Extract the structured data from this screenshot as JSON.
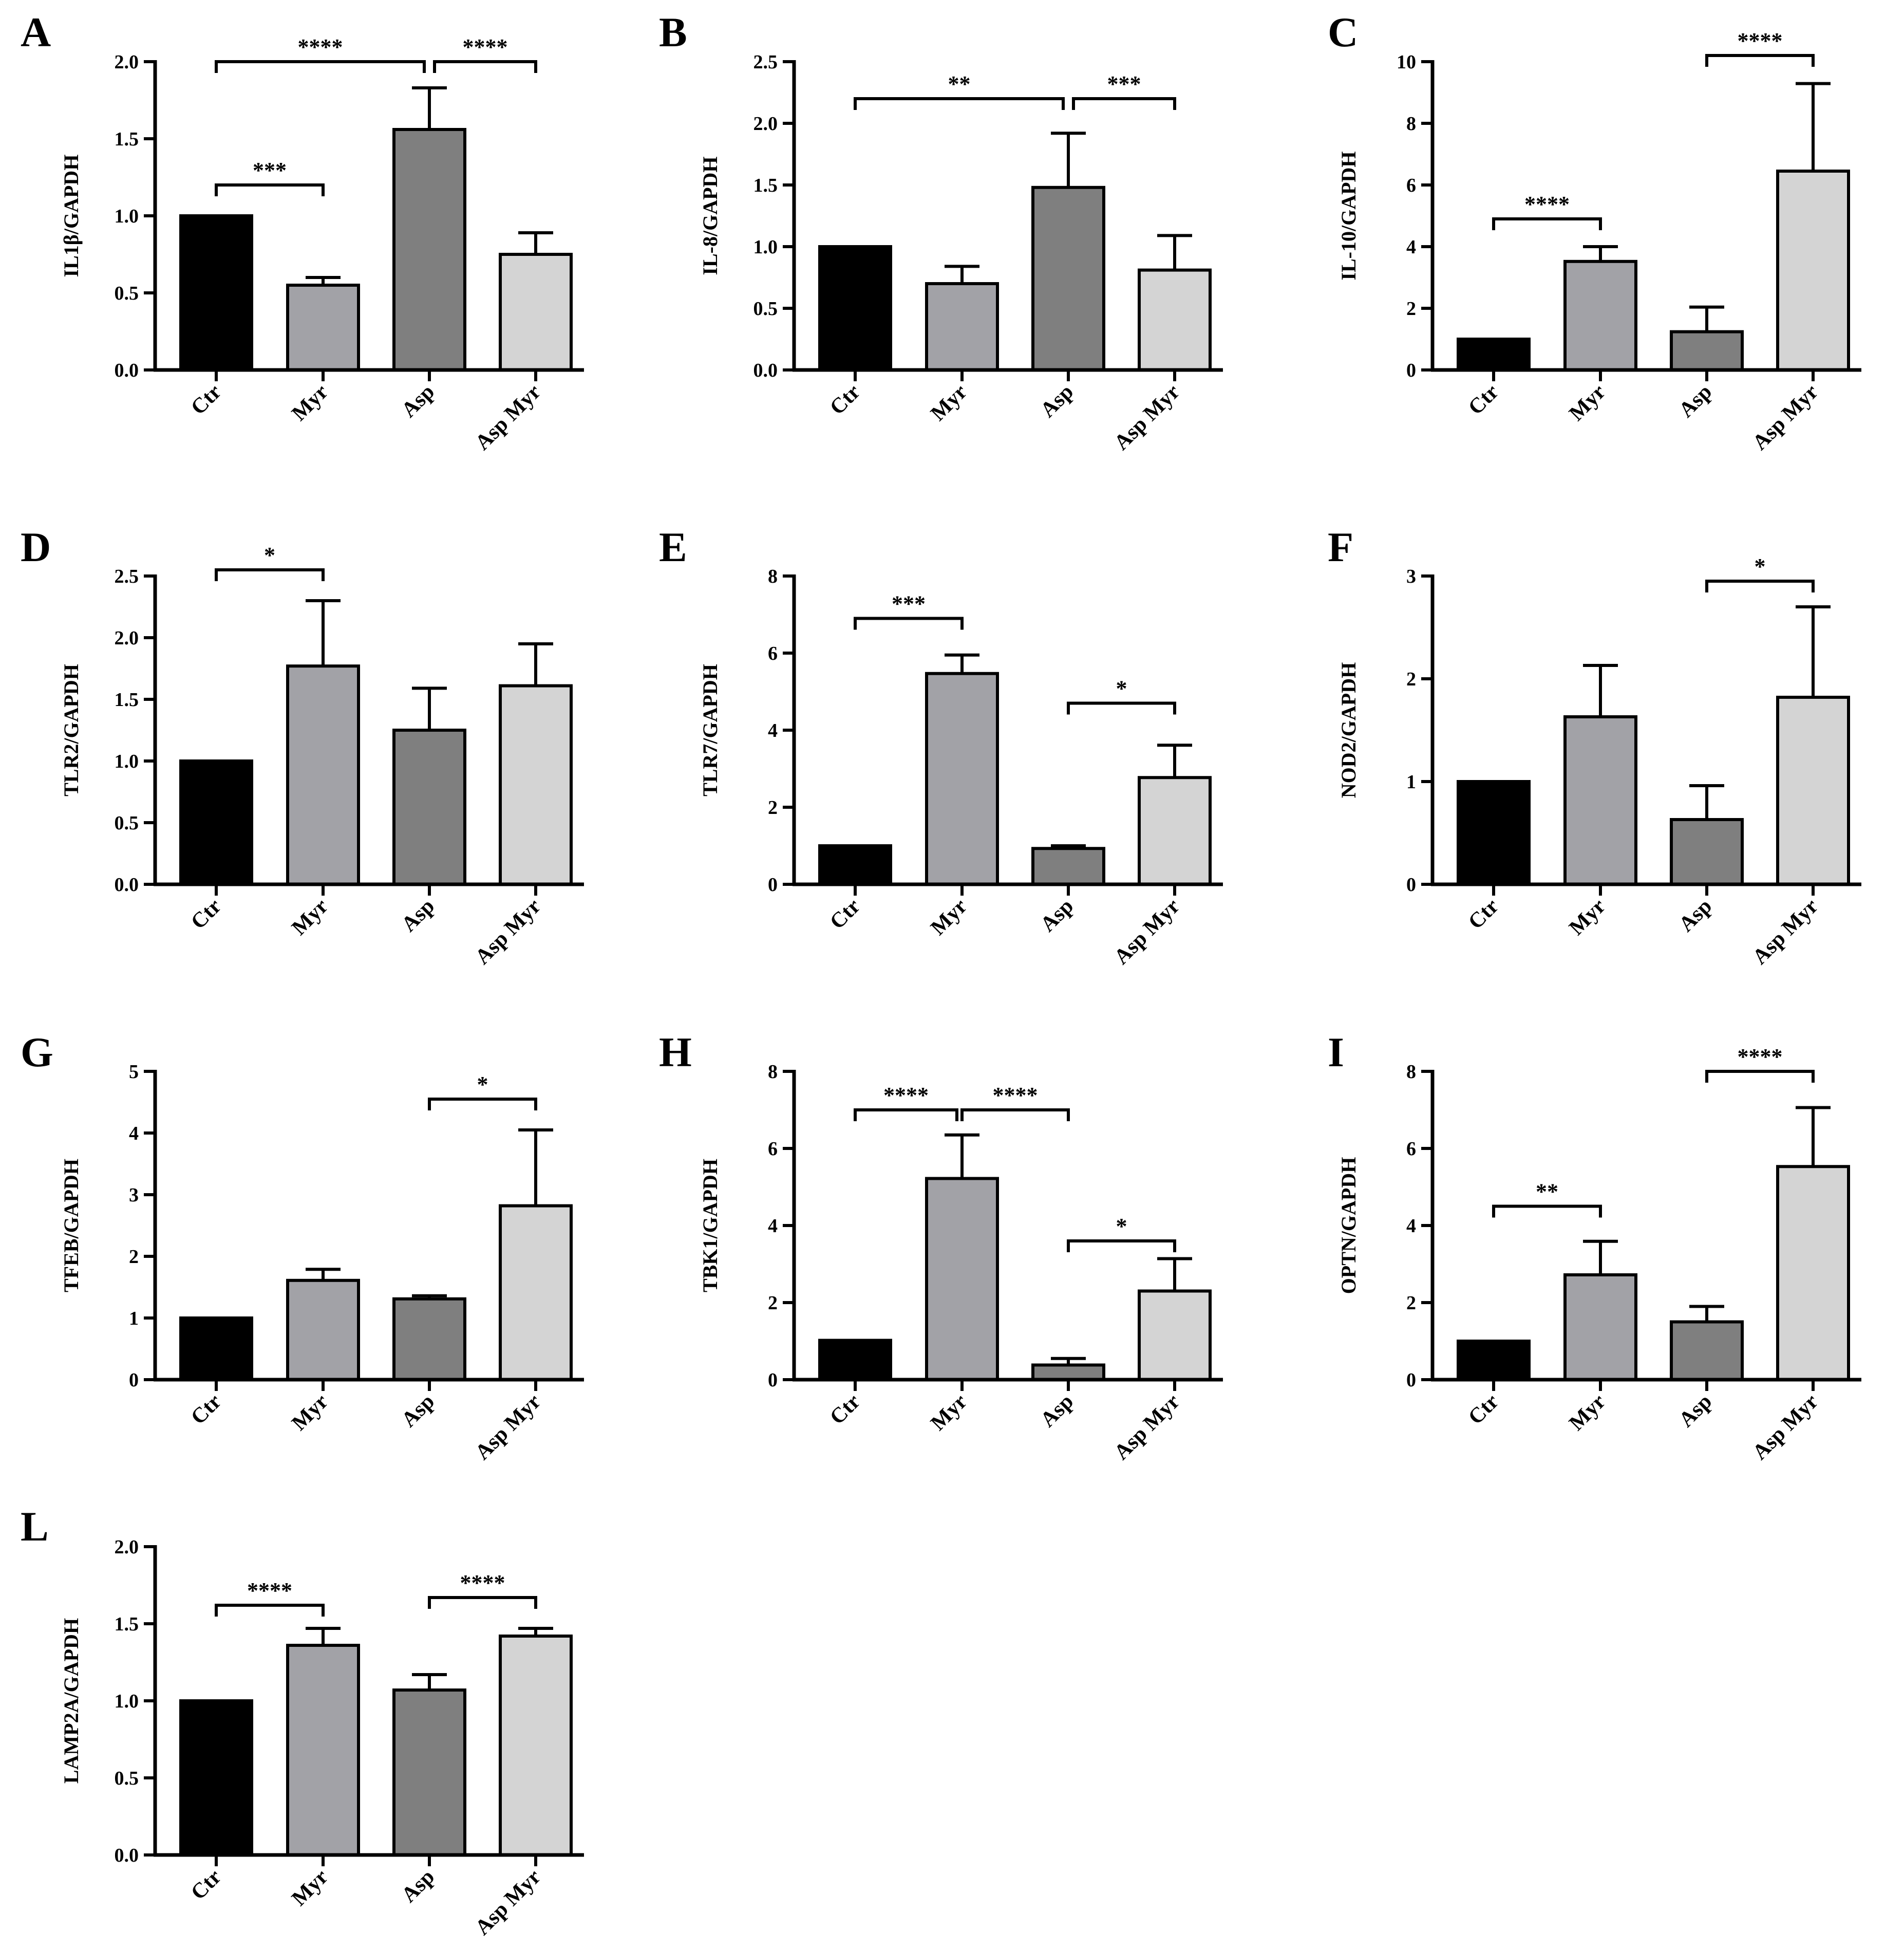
{
  "figure": {
    "background": "#ffffff"
  },
  "chart_data": [
    {
      "panel": "A",
      "type": "bar",
      "ylabel": "IL1β/GAPDH",
      "categories": [
        "Ctr",
        "Myr",
        "Asp",
        "Asp Myr"
      ],
      "values": [
        1.0,
        0.55,
        1.56,
        0.75
      ],
      "errors": [
        0,
        0.05,
        0.27,
        0.14
      ],
      "ylim": [
        0,
        2.0
      ],
      "yticks": [
        0.0,
        0.5,
        1.0,
        1.5,
        2.0
      ],
      "tick_labels": [
        "0.0",
        "0.5",
        "1.0",
        "1.5",
        "2.0"
      ],
      "colors": [
        "#000000",
        "#a2a2a7",
        "#7f7f7f",
        "#d4d4d4"
      ],
      "significance": [
        {
          "from": 0,
          "to": 1,
          "y": 1.2,
          "label": "***"
        },
        {
          "from": 0,
          "to": 2,
          "y": 2.0,
          "label": "****"
        },
        {
          "from": 2,
          "to": 3,
          "y": 2.0,
          "label": "****"
        }
      ]
    },
    {
      "panel": "B",
      "type": "bar",
      "ylabel": "IL-8/GAPDH",
      "categories": [
        "Ctr",
        "Myr",
        "Asp",
        "Asp Myr"
      ],
      "values": [
        1.0,
        0.7,
        1.48,
        0.81
      ],
      "errors": [
        0,
        0.14,
        0.44,
        0.28
      ],
      "ylim": [
        0,
        2.5
      ],
      "yticks": [
        0.0,
        0.5,
        1.0,
        1.5,
        2.0,
        2.5
      ],
      "tick_labels": [
        "0.0",
        "0.5",
        "1.0",
        "1.5",
        "2.0",
        "2.5"
      ],
      "colors": [
        "#000000",
        "#a2a2a7",
        "#7f7f7f",
        "#d4d4d4"
      ],
      "significance": [
        {
          "from": 0,
          "to": 2,
          "y": 2.2,
          "label": "**"
        },
        {
          "from": 2,
          "to": 3,
          "y": 2.2,
          "label": "***"
        }
      ]
    },
    {
      "panel": "C",
      "type": "bar",
      "ylabel": "IL-10/GAPDH",
      "categories": [
        "Ctr",
        "Myr",
        "Asp",
        "Asp Myr"
      ],
      "values": [
        1.0,
        3.52,
        1.24,
        6.45
      ],
      "errors": [
        0,
        0.48,
        0.8,
        2.84
      ],
      "ylim": [
        0,
        10
      ],
      "yticks": [
        0,
        2,
        4,
        6,
        8,
        10
      ],
      "tick_labels": [
        "0",
        "2",
        "4",
        "6",
        "8",
        "10"
      ],
      "colors": [
        "#000000",
        "#a2a2a7",
        "#7f7f7f",
        "#d4d4d4"
      ],
      "significance": [
        {
          "from": 0,
          "to": 1,
          "y": 4.9,
          "label": "****"
        },
        {
          "from": 2,
          "to": 3,
          "y": 10.2,
          "label": "****"
        }
      ]
    },
    {
      "panel": "D",
      "type": "bar",
      "ylabel": "TLR2/GAPDH",
      "categories": [
        "Ctr",
        "Myr",
        "Asp",
        "Asp Myr"
      ],
      "values": [
        1.0,
        1.77,
        1.25,
        1.61
      ],
      "errors": [
        0,
        0.53,
        0.34,
        0.34
      ],
      "ylim": [
        0,
        2.5
      ],
      "yticks": [
        0.0,
        0.5,
        1.0,
        1.5,
        2.0,
        2.5
      ],
      "tick_labels": [
        "0.0",
        "0.5",
        "1.0",
        "1.5",
        "2.0",
        "2.5"
      ],
      "colors": [
        "#000000",
        "#a2a2a7",
        "#7f7f7f",
        "#d4d4d4"
      ],
      "significance": [
        {
          "from": 0,
          "to": 1,
          "y": 2.55,
          "label": "*"
        }
      ]
    },
    {
      "panel": "E",
      "type": "bar",
      "ylabel": "TLR7/GAPDH",
      "categories": [
        "Ctr",
        "Myr",
        "Asp",
        "Asp Myr"
      ],
      "values": [
        1.0,
        5.47,
        0.93,
        2.77
      ],
      "errors": [
        0,
        0.48,
        0.07,
        0.84
      ],
      "ylim": [
        0,
        8
      ],
      "yticks": [
        0,
        2,
        4,
        6,
        8
      ],
      "tick_labels": [
        "0",
        "2",
        "4",
        "6",
        "8"
      ],
      "colors": [
        "#000000",
        "#a2a2a7",
        "#7f7f7f",
        "#d4d4d4"
      ],
      "significance": [
        {
          "from": 0,
          "to": 1,
          "y": 6.9,
          "label": "***"
        },
        {
          "from": 2,
          "to": 3,
          "y": 4.7,
          "label": "*"
        }
      ]
    },
    {
      "panel": "F",
      "type": "bar",
      "ylabel": "NOD2/GAPDH",
      "categories": [
        "Ctr",
        "Myr",
        "Asp",
        "Asp Myr"
      ],
      "values": [
        1.0,
        1.63,
        0.63,
        1.82
      ],
      "errors": [
        0,
        0.5,
        0.33,
        0.88
      ],
      "ylim": [
        0,
        3
      ],
      "yticks": [
        0,
        1,
        2,
        3
      ],
      "tick_labels": [
        "0",
        "1",
        "2",
        "3"
      ],
      "colors": [
        "#000000",
        "#a2a2a7",
        "#7f7f7f",
        "#d4d4d4"
      ],
      "significance": [
        {
          "from": 2,
          "to": 3,
          "y": 2.95,
          "label": "*"
        }
      ]
    },
    {
      "panel": "G",
      "type": "bar",
      "ylabel": "TFEB/GAPDH",
      "categories": [
        "Ctr",
        "Myr",
        "Asp",
        "Asp Myr"
      ],
      "values": [
        1.0,
        1.61,
        1.31,
        2.82
      ],
      "errors": [
        0,
        0.18,
        0.05,
        1.23
      ],
      "ylim": [
        0,
        5
      ],
      "yticks": [
        0,
        1,
        2,
        3,
        4,
        5
      ],
      "tick_labels": [
        "0",
        "1",
        "2",
        "3",
        "4",
        "5"
      ],
      "colors": [
        "#000000",
        "#a2a2a7",
        "#7f7f7f",
        "#d4d4d4"
      ],
      "significance": [
        {
          "from": 2,
          "to": 3,
          "y": 4.55,
          "label": "*"
        }
      ]
    },
    {
      "panel": "H",
      "type": "bar",
      "ylabel": "TBK1/GAPDH",
      "categories": [
        "Ctr",
        "Myr",
        "Asp",
        "Asp Myr"
      ],
      "values": [
        1.02,
        5.22,
        0.38,
        2.3
      ],
      "errors": [
        0,
        1.13,
        0.17,
        0.84
      ],
      "ylim": [
        0,
        8
      ],
      "yticks": [
        0,
        2,
        4,
        6,
        8
      ],
      "tick_labels": [
        "0",
        "2",
        "4",
        "6",
        "8"
      ],
      "colors": [
        "#000000",
        "#a2a2a7",
        "#7f7f7f",
        "#d4d4d4"
      ],
      "significance": [
        {
          "from": 0,
          "to": 1,
          "y": 7.0,
          "label": "****"
        },
        {
          "from": 1,
          "to": 2,
          "y": 7.0,
          "label": "****"
        },
        {
          "from": 2,
          "to": 3,
          "y": 3.6,
          "label": "*"
        }
      ]
    },
    {
      "panel": "I",
      "type": "bar",
      "ylabel": "OPTN/GAPDH",
      "categories": [
        "Ctr",
        "Myr",
        "Asp",
        "Asp Myr"
      ],
      "values": [
        1.0,
        2.72,
        1.5,
        5.53
      ],
      "errors": [
        0,
        0.87,
        0.4,
        1.53
      ],
      "ylim": [
        0,
        8
      ],
      "yticks": [
        0,
        2,
        4,
        6,
        8
      ],
      "tick_labels": [
        "0",
        "2",
        "4",
        "6",
        "8"
      ],
      "colors": [
        "#000000",
        "#a2a2a7",
        "#7f7f7f",
        "#d4d4d4"
      ],
      "significance": [
        {
          "from": 0,
          "to": 1,
          "y": 4.5,
          "label": "**"
        },
        {
          "from": 2,
          "to": 3,
          "y": 8.0,
          "label": "****"
        }
      ]
    },
    {
      "panel": "L",
      "type": "bar",
      "ylabel": "LAMP2A/GAPDH",
      "categories": [
        "Ctr",
        "Myr",
        "Asp",
        "Asp Myr"
      ],
      "values": [
        1.0,
        1.36,
        1.07,
        1.42
      ],
      "errors": [
        0,
        0.11,
        0.1,
        0.05
      ],
      "ylim": [
        0,
        2.0
      ],
      "yticks": [
        0.0,
        0.5,
        1.0,
        1.5,
        2.0
      ],
      "tick_labels": [
        "0.0",
        "0.5",
        "1.0",
        "1.5",
        "2.0"
      ],
      "colors": [
        "#000000",
        "#a2a2a7",
        "#7f7f7f",
        "#d4d4d4"
      ],
      "significance": [
        {
          "from": 0,
          "to": 1,
          "y": 1.62,
          "label": "****"
        },
        {
          "from": 2,
          "to": 3,
          "y": 1.67,
          "label": "****"
        }
      ]
    }
  ]
}
